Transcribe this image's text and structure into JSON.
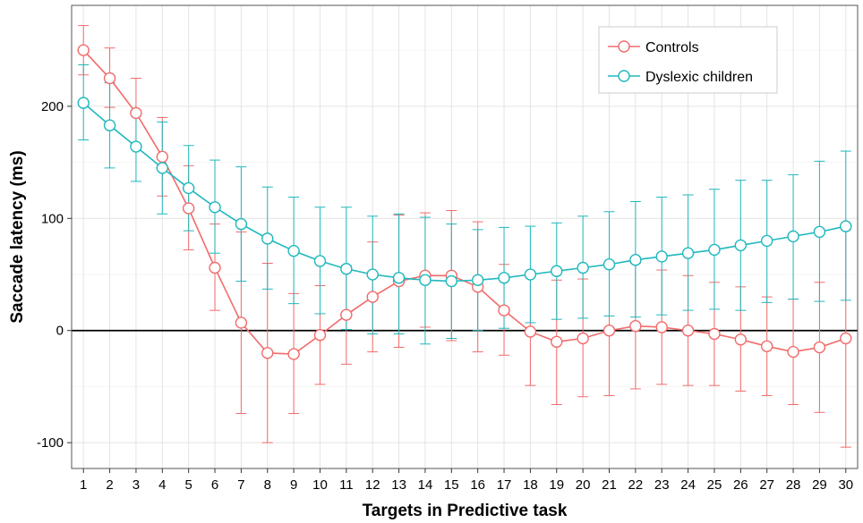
{
  "chart_data": {
    "type": "line",
    "title": "",
    "xlabel": "Targets in Predictive task",
    "ylabel": "Saccade latency (ms)",
    "x": [
      1,
      2,
      3,
      4,
      5,
      6,
      7,
      8,
      9,
      10,
      11,
      12,
      13,
      14,
      15,
      16,
      17,
      18,
      19,
      20,
      21,
      22,
      23,
      24,
      25,
      26,
      27,
      28,
      29,
      30
    ],
    "xlim": [
      0.55,
      30.45
    ],
    "ylim": [
      -123,
      290
    ],
    "yticks": [
      -100,
      0,
      100,
      200
    ],
    "reference_line": 0,
    "grid": true,
    "legend_position": "top-right",
    "series": [
      {
        "name": "Controls",
        "color": "#F26B6B",
        "values": [
          250,
          225,
          194,
          155,
          109,
          56,
          7,
          -20,
          -21,
          -4,
          14,
          30,
          44,
          49,
          49,
          39,
          18,
          -1,
          -10,
          -7,
          0,
          4,
          3,
          0,
          -3,
          -8,
          -14,
          -19,
          -15,
          -7
        ],
        "upper": [
          272,
          252,
          225,
          190,
          147,
          95,
          88,
          60,
          33,
          40,
          58,
          79,
          103,
          105,
          107,
          97,
          59,
          48,
          45,
          46,
          58,
          60,
          54,
          49,
          43,
          39,
          30,
          28,
          43,
          90
        ],
        "lower": [
          228,
          199,
          163,
          120,
          72,
          18,
          -74,
          -100,
          -74,
          -48,
          -30,
          -19,
          -15,
          3,
          -9,
          -19,
          -22,
          -49,
          -66,
          -59,
          -58,
          -52,
          -48,
          -49,
          -49,
          -54,
          -58,
          -66,
          -73,
          -104
        ]
      },
      {
        "name": "Dyslexic children",
        "color": "#1FB8BE",
        "values": [
          203,
          183,
          164,
          145,
          127,
          110,
          95,
          82,
          71,
          62,
          55,
          50,
          47,
          45,
          44,
          45,
          47,
          50,
          53,
          56,
          59,
          63,
          66,
          69,
          72,
          76,
          80,
          84,
          88,
          93
        ],
        "upper": [
          237,
          221,
          196,
          186,
          165,
          152,
          146,
          128,
          119,
          110,
          110,
          102,
          104,
          101,
          95,
          90,
          92,
          93,
          96,
          102,
          106,
          115,
          119,
          121,
          126,
          134,
          134,
          139,
          151,
          160
        ],
        "lower": [
          170,
          145,
          133,
          104,
          89,
          69,
          44,
          37,
          24,
          15,
          1,
          -3,
          -3,
          -12,
          -7,
          0,
          2,
          7,
          10,
          11,
          13,
          12,
          14,
          18,
          19,
          18,
          25,
          28,
          26,
          27
        ]
      }
    ]
  }
}
